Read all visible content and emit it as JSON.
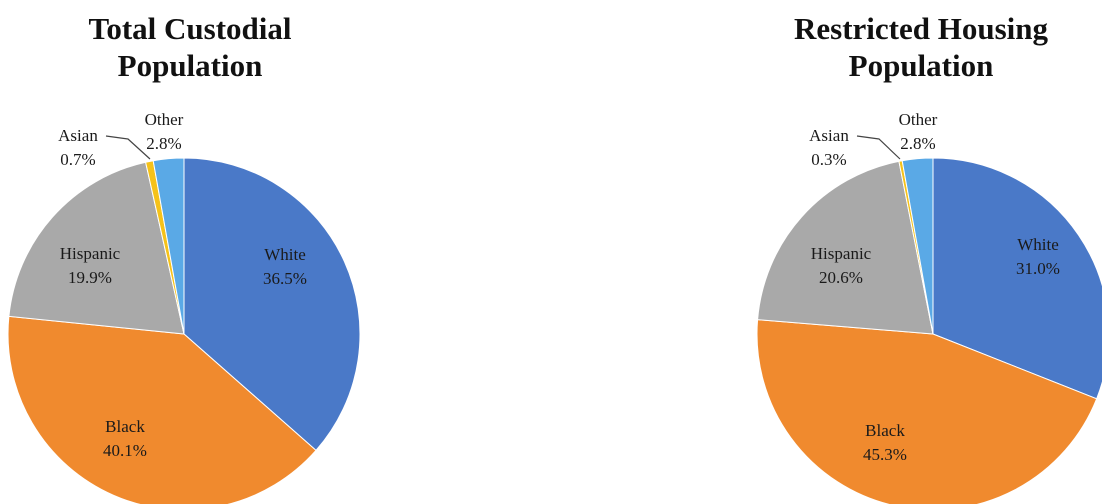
{
  "chart_data": [
    {
      "type": "pie",
      "title_lines": [
        "Total Custodial",
        "Population"
      ],
      "colors": {
        "White": "#4a79c8",
        "Black": "#f08a2e",
        "Hispanic": "#a9a9a9",
        "Asian": "#f5c21a",
        "Other": "#5aa9e6"
      },
      "slices": [
        {
          "label": "White",
          "value": 36.5,
          "value_text": "36.5%"
        },
        {
          "label": "Black",
          "value": 40.1,
          "value_text": "40.1%"
        },
        {
          "label": "Hispanic",
          "value": 19.9,
          "value_text": "19.9%"
        },
        {
          "label": "Asian",
          "value": 0.7,
          "value_text": "0.7%"
        },
        {
          "label": "Other",
          "value": 2.8,
          "value_text": "2.8%"
        }
      ]
    },
    {
      "type": "pie",
      "title_lines": [
        "Restricted Housing",
        "Population"
      ],
      "colors": {
        "White": "#4a79c8",
        "Black": "#f08a2e",
        "Hispanic": "#a9a9a9",
        "Asian": "#f5c21a",
        "Other": "#5aa9e6"
      },
      "slices": [
        {
          "label": "White",
          "value": 31.0,
          "value_text": "31.0%"
        },
        {
          "label": "Black",
          "value": 45.3,
          "value_text": "45.3%"
        },
        {
          "label": "Hispanic",
          "value": 20.6,
          "value_text": "20.6%"
        },
        {
          "label": "Asian",
          "value": 0.3,
          "value_text": "0.3%"
        },
        {
          "label": "Other",
          "value": 2.8,
          "value_text": "2.8%"
        }
      ]
    }
  ]
}
